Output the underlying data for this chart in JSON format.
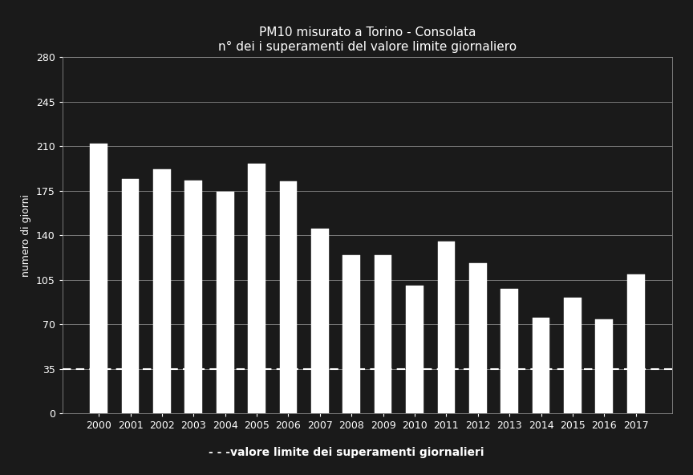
{
  "title_line1": "PM10 misurato a Torino - Consolata",
  "title_line2": "n° dei i superamenti del valore limite giornaliero",
  "ylabel": "numero di giorni",
  "xlabel_legend": "- - -valore limite dei superamenti giornalieri",
  "years": [
    2000,
    2001,
    2002,
    2003,
    2004,
    2005,
    2006,
    2007,
    2008,
    2009,
    2010,
    2011,
    2012,
    2013,
    2014,
    2015,
    2016,
    2017
  ],
  "values": [
    212,
    184,
    192,
    183,
    174,
    196,
    182,
    145,
    124,
    124,
    100,
    135,
    118,
    98,
    75,
    91,
    74,
    109
  ],
  "ylim": [
    0,
    280
  ],
  "yticks": [
    0,
    35,
    70,
    105,
    140,
    175,
    210,
    245,
    280
  ],
  "limit_value": 35,
  "bar_color": "#ffffff",
  "bar_edge_color": "#ffffff",
  "background_color": "#1a1a1a",
  "text_color": "#ffffff",
  "grid_color": "#888888",
  "limit_line_color": "#ffffff",
  "title_fontsize": 11,
  "axis_label_fontsize": 9,
  "tick_fontsize": 9,
  "bar_width": 0.55
}
